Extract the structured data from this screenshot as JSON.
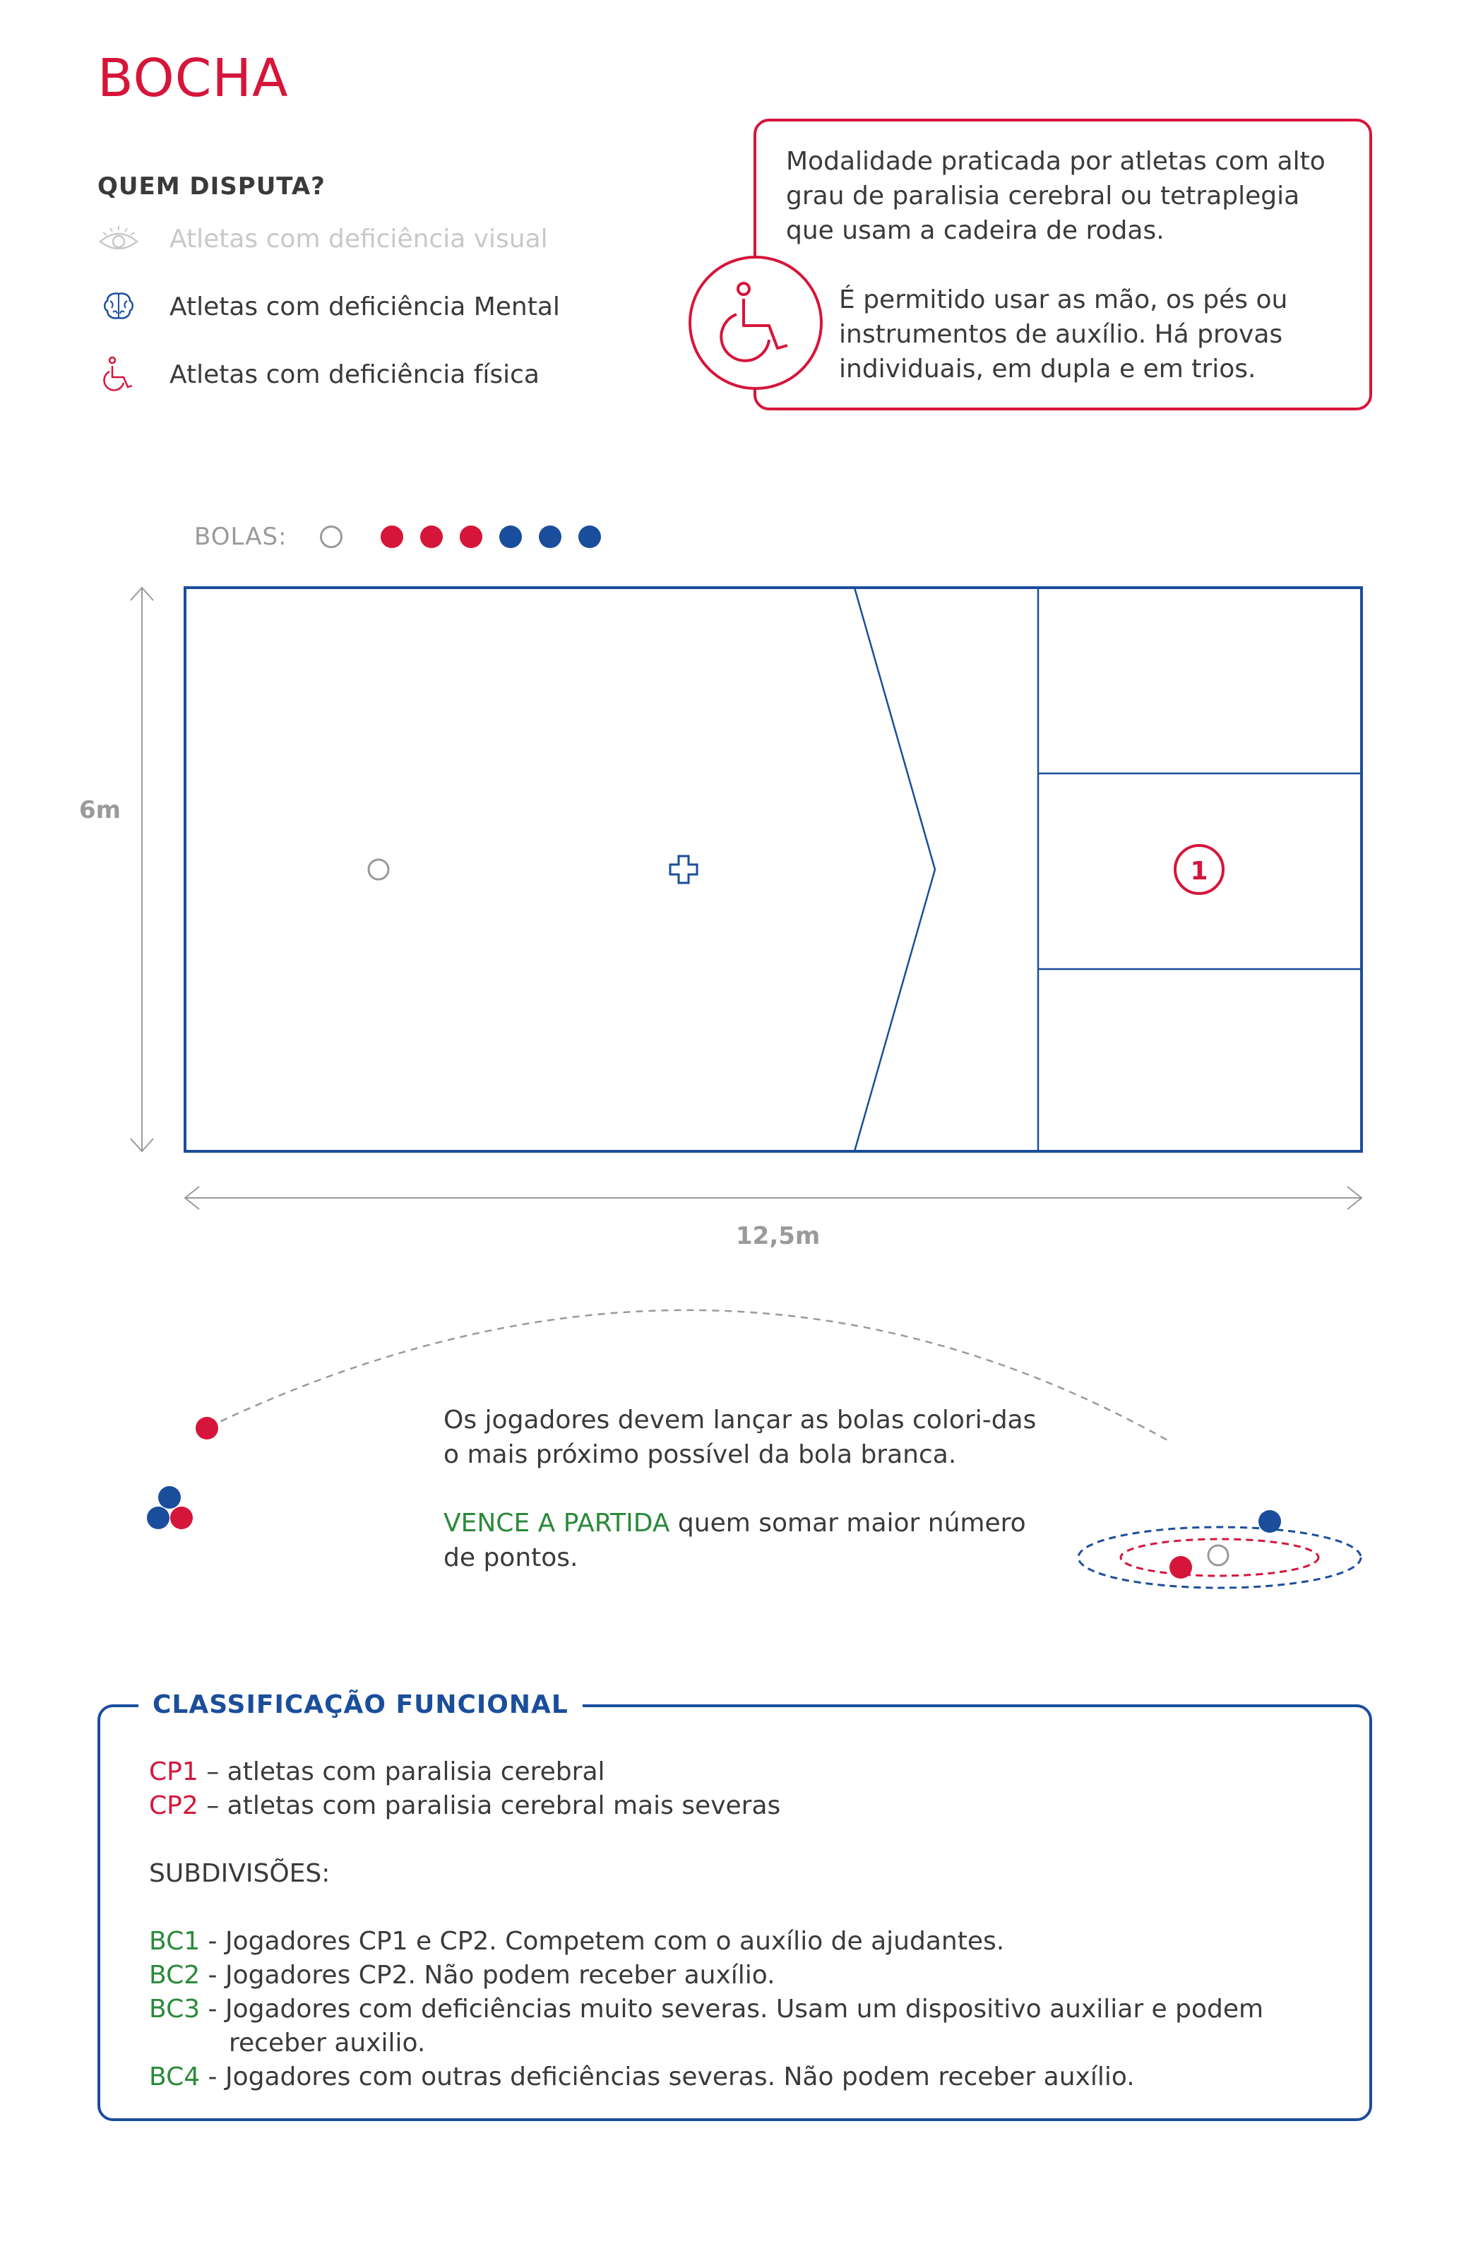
{
  "title": "BOCHA",
  "who": {
    "heading": "QUEM DISPUTA?",
    "items": [
      {
        "label": "Atletas com deficiência visual",
        "icon": "eye-icon",
        "active": false
      },
      {
        "label": "Atletas com deficiência Mental",
        "icon": "brain-icon",
        "active": true
      },
      {
        "label": "Atletas com deficiência física",
        "icon": "wheelchair-icon",
        "active": true
      }
    ]
  },
  "info": {
    "paragraph1": "Modalidade praticada por atletas com alto grau de paralisia cerebral ou tetraplegia que usam a cadeira de rodas.",
    "paragraph2": "É permitido usar as mão, os pés ou instrumentos de auxílio. Há provas individuais, em dupla e em trios.",
    "icon": "wheelchair-icon"
  },
  "balls": {
    "label": "BOLAS:",
    "items": [
      "white",
      "red",
      "red",
      "red",
      "blue",
      "blue",
      "blue"
    ]
  },
  "court": {
    "height_label": "6m",
    "width_label": "12,5m",
    "box_number": "1"
  },
  "game": {
    "line1": "Os jogadores devem lançar as bolas colori-das o mais próximo possível da bola branca.",
    "win_highlight": "VENCE A PARTIDA",
    "win_rest": " quem somar maior número de pontos."
  },
  "classification": {
    "title": "CLASSIFICAÇÃO FUNCIONAL",
    "classes": [
      {
        "code": "CP1",
        "text": " – atletas com paralisia cerebral"
      },
      {
        "code": "CP2",
        "text": " – atletas com paralisia cerebral mais severas"
      }
    ],
    "subdivisions_label": "SUBDIVISÕES:",
    "subdivisions": [
      {
        "code": "BC1",
        "text": " - Jogadores CP1 e CP2. Competem com o auxílio de ajudantes."
      },
      {
        "code": "BC2",
        "text": " - Jogadores CP2. Não podem receber auxílio."
      },
      {
        "code": "BC3",
        "text": " - Jogadores com deficiências muito severas. Usam um dispositivo auxiliar e podem",
        "continuation": "receber auxilio."
      },
      {
        "code": "BC4",
        "text": " - Jogadores com outras deficiências severas. Não podem receber auxílio."
      }
    ]
  },
  "colors": {
    "red": "#d6153a",
    "blue": "#1a4e9c",
    "green": "#2a8a3a",
    "gray": "#9a9a9a"
  }
}
